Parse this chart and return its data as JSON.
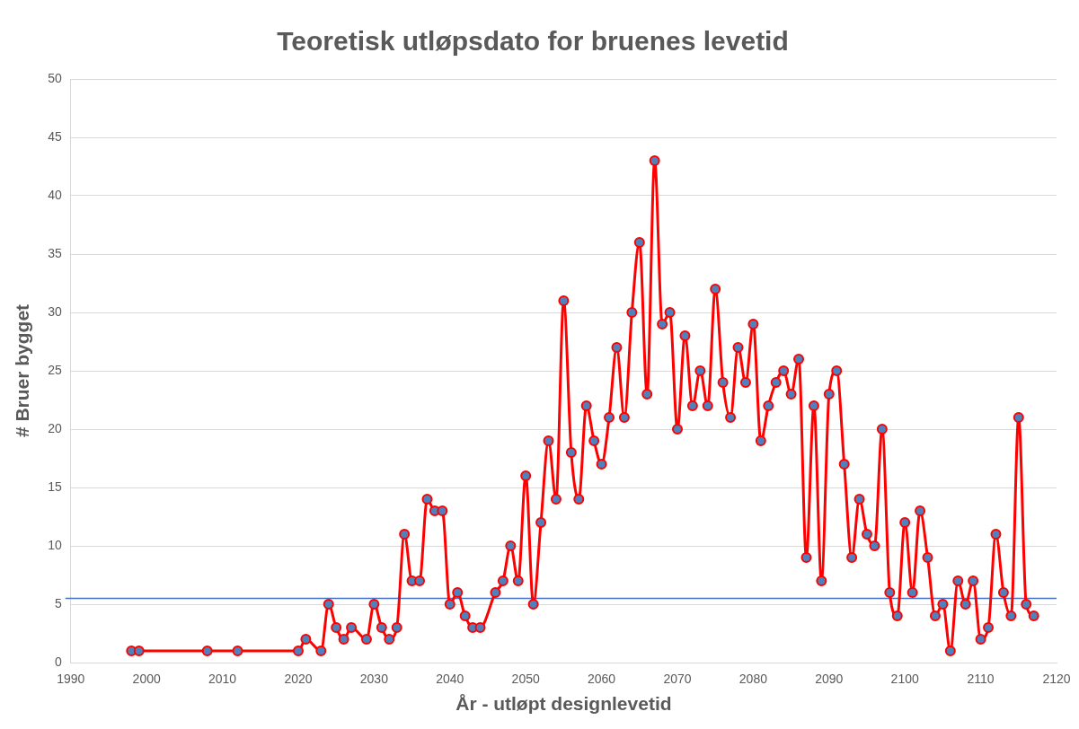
{
  "chart_data": {
    "type": "line",
    "title": "Teoretisk utløpsdato for bruenes levetid",
    "xlabel": "År - utløpt designlevetid",
    "ylabel": "# Bruer bygget",
    "x": [
      1998,
      1999,
      2008,
      2012,
      2020,
      2021,
      2023,
      2024,
      2025,
      2026,
      2027,
      2029,
      2030,
      2031,
      2032,
      2033,
      2034,
      2035,
      2036,
      2037,
      2038,
      2039,
      2040,
      2041,
      2042,
      2043,
      2044,
      2046,
      2047,
      2048,
      2049,
      2050,
      2051,
      2052,
      2053,
      2054,
      2055,
      2056,
      2057,
      2058,
      2059,
      2060,
      2061,
      2062,
      2063,
      2064,
      2065,
      2066,
      2067,
      2068,
      2069,
      2070,
      2071,
      2072,
      2073,
      2074,
      2075,
      2076,
      2077,
      2078,
      2079,
      2080,
      2081,
      2082,
      2083,
      2084,
      2085,
      2086,
      2087,
      2088,
      2089,
      2090,
      2091,
      2092,
      2093,
      2094,
      2095,
      2096,
      2097,
      2098,
      2099,
      2100,
      2101,
      2102,
      2103,
      2104,
      2105,
      2106,
      2107,
      2108,
      2109,
      2110,
      2111,
      2112,
      2113,
      2114,
      2115,
      2116,
      2117
    ],
    "series": [
      {
        "color": "#ff0000",
        "values": [
          1,
          1,
          1,
          1,
          1,
          2,
          1,
          5,
          3,
          2,
          3,
          2,
          5,
          3,
          2,
          3,
          11,
          7,
          7,
          14,
          13,
          13,
          5,
          6,
          4,
          3,
          3,
          6,
          7,
          10,
          7,
          16,
          5,
          12,
          19,
          14,
          31,
          18,
          14,
          22,
          19,
          17,
          21,
          27,
          21,
          30,
          36,
          23,
          43,
          29,
          30,
          20,
          28,
          22,
          25,
          22,
          32,
          24,
          21,
          27,
          24,
          29,
          19,
          22,
          24,
          25,
          23,
          26,
          9,
          22,
          7,
          23,
          25,
          17,
          9,
          14,
          11,
          10,
          20,
          6,
          4,
          12,
          6,
          13,
          9,
          4,
          5,
          1,
          7,
          5,
          7,
          2,
          3,
          11,
          6,
          4,
          21,
          5,
          4
        ]
      }
    ],
    "xlim": [
      1990,
      2120
    ],
    "xticks": [
      1990,
      2000,
      2010,
      2020,
      2030,
      2040,
      2050,
      2060,
      2070,
      2080,
      2090,
      2100,
      2110,
      2120
    ],
    "ylim": [
      0,
      50
    ],
    "yticks": [
      0,
      5,
      10,
      15,
      20,
      25,
      30,
      35,
      40,
      45,
      50
    ],
    "ref_lines": [
      {
        "axis": "y",
        "value": 5.5,
        "color": "#4472c4"
      }
    ],
    "grid": "y",
    "legend": false,
    "marker": "circle",
    "line_style": "solid"
  }
}
